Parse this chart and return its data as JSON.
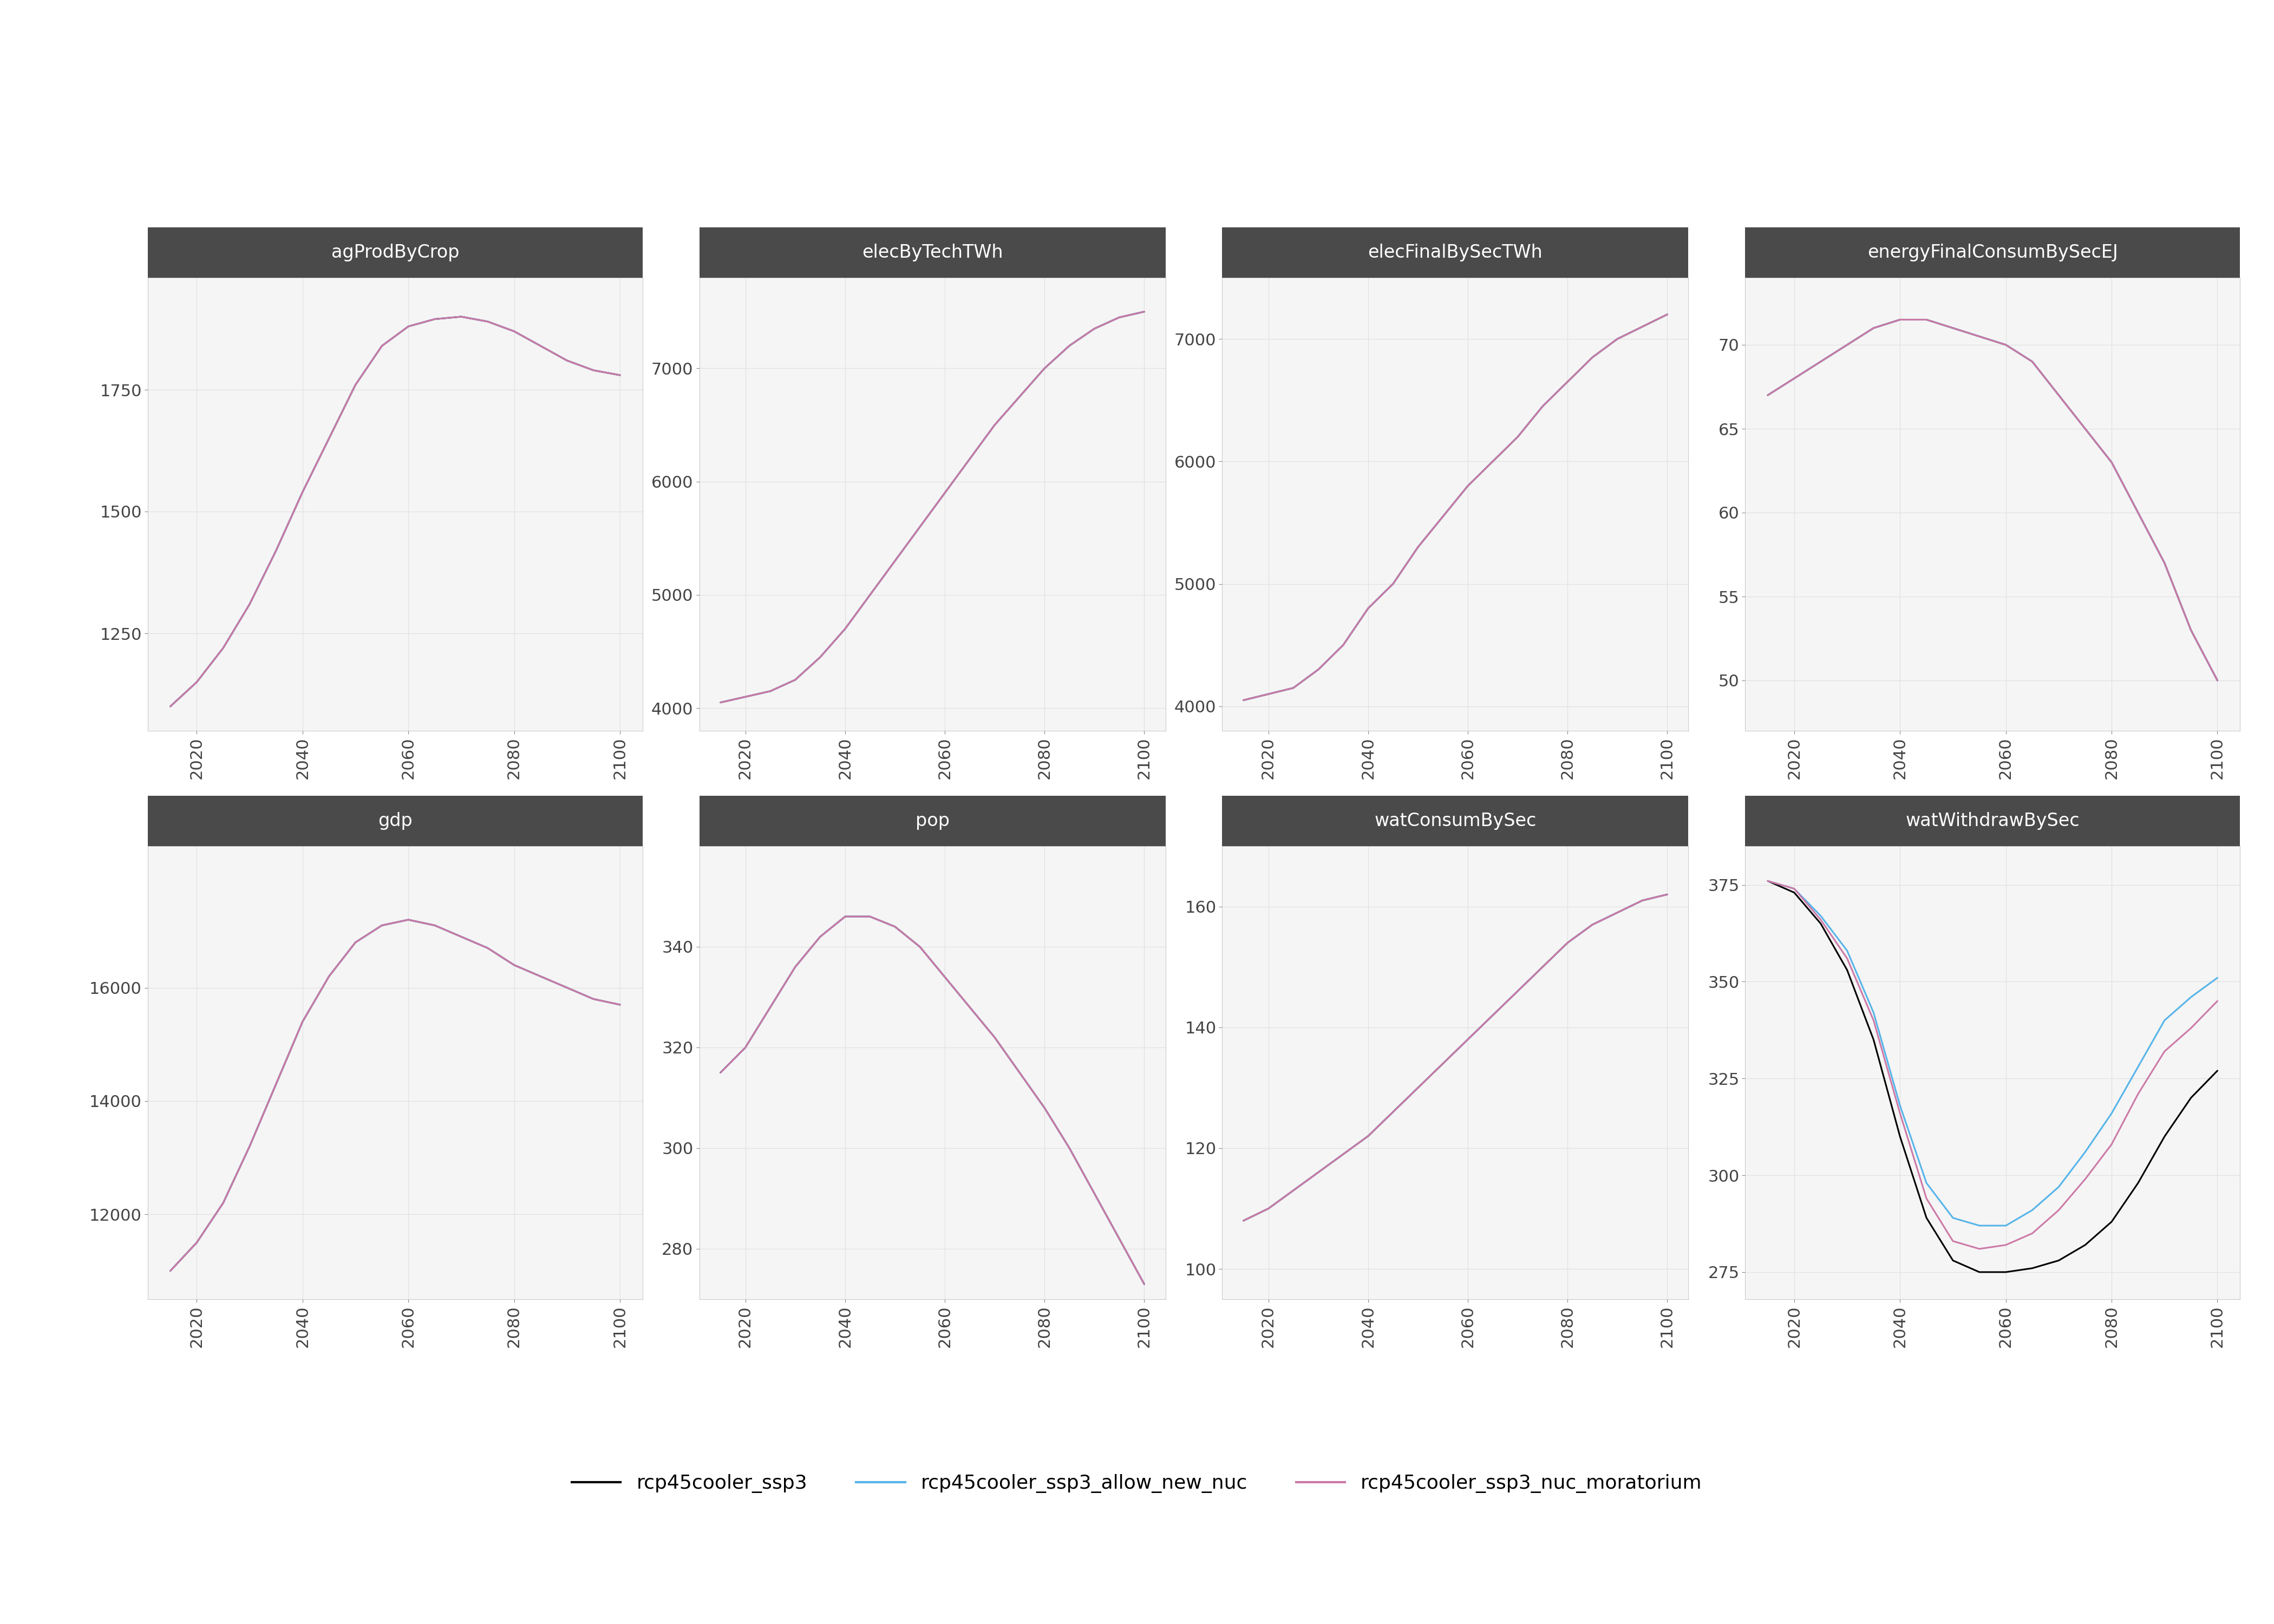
{
  "years": [
    2015,
    2020,
    2025,
    2030,
    2035,
    2040,
    2045,
    2050,
    2055,
    2060,
    2065,
    2070,
    2075,
    2080,
    2085,
    2090,
    2095,
    2100
  ],
  "scenarios": [
    "rcp45cooler_ssp3",
    "rcp45cooler_ssp3_allow_new_nuc",
    "rcp45cooler_ssp3_nuc_moratorium"
  ],
  "colors": [
    "#000000",
    "#56B4E9",
    "#CC79A7"
  ],
  "legend_labels": [
    "rcp45cooler_ssp3",
    "rcp45cooler_ssp3_allow_new_nuc",
    "rcp45cooler_ssp3_nuc_moratorium"
  ],
  "panels": [
    {
      "title": "agProdByCrop",
      "ylim": [
        1050,
        1980
      ],
      "yticks": [
        1250,
        1500,
        1750
      ],
      "data": [
        [
          1100,
          1150,
          1220,
          1310,
          1420,
          1540,
          1650,
          1760,
          1840,
          1880,
          1895,
          1900,
          1890,
          1870,
          1840,
          1810,
          1790,
          1780
        ],
        [
          1100,
          1150,
          1220,
          1310,
          1420,
          1540,
          1650,
          1760,
          1840,
          1880,
          1895,
          1900,
          1890,
          1870,
          1840,
          1810,
          1790,
          1780
        ],
        [
          1100,
          1150,
          1220,
          1310,
          1420,
          1540,
          1650,
          1760,
          1840,
          1880,
          1895,
          1900,
          1890,
          1870,
          1840,
          1810,
          1790,
          1780
        ]
      ]
    },
    {
      "title": "elecByTechTWh",
      "ylim": [
        3800,
        7800
      ],
      "yticks": [
        4000,
        5000,
        6000,
        7000
      ],
      "data": [
        [
          4050,
          4100,
          4150,
          4250,
          4450,
          4700,
          5000,
          5300,
          5600,
          5900,
          6200,
          6500,
          6750,
          7000,
          7200,
          7350,
          7450,
          7500
        ],
        [
          4050,
          4100,
          4150,
          4250,
          4450,
          4700,
          5000,
          5300,
          5600,
          5900,
          6200,
          6500,
          6750,
          7000,
          7200,
          7350,
          7450,
          7500
        ],
        [
          4050,
          4100,
          4150,
          4250,
          4450,
          4700,
          5000,
          5300,
          5600,
          5900,
          6200,
          6500,
          6750,
          7000,
          7200,
          7350,
          7450,
          7500
        ]
      ]
    },
    {
      "title": "elecFinalBySecTWh",
      "ylim": [
        3800,
        7500
      ],
      "yticks": [
        4000,
        5000,
        6000,
        7000
      ],
      "data": [
        [
          4050,
          4100,
          4150,
          4300,
          4500,
          4800,
          5000,
          5300,
          5550,
          5800,
          6000,
          6200,
          6450,
          6650,
          6850,
          7000,
          7100,
          7200
        ],
        [
          4050,
          4100,
          4150,
          4300,
          4500,
          4800,
          5000,
          5300,
          5550,
          5800,
          6000,
          6200,
          6450,
          6650,
          6850,
          7000,
          7100,
          7200
        ],
        [
          4050,
          4100,
          4150,
          4300,
          4500,
          4800,
          5000,
          5300,
          5550,
          5800,
          6000,
          6200,
          6450,
          6650,
          6850,
          7000,
          7100,
          7200
        ]
      ]
    },
    {
      "title": "energyFinalConsumBySecEJ",
      "ylim": [
        47,
        74
      ],
      "yticks": [
        50,
        55,
        60,
        65,
        70
      ],
      "data": [
        [
          67,
          68,
          69,
          70,
          71,
          71.5,
          71.5,
          71,
          70.5,
          70,
          69,
          67,
          65,
          63,
          60,
          57,
          53,
          50
        ],
        [
          67,
          68,
          69,
          70,
          71,
          71.5,
          71.5,
          71,
          70.5,
          70,
          69,
          67,
          65,
          63,
          60,
          57,
          53,
          50
        ],
        [
          67,
          68,
          69,
          70,
          71,
          71.5,
          71.5,
          71,
          70.5,
          70,
          69,
          67,
          65,
          63,
          60,
          57,
          53,
          50
        ]
      ]
    },
    {
      "title": "gdp",
      "ylim": [
        10500,
        18500
      ],
      "yticks": [
        12000,
        14000,
        16000
      ],
      "data": [
        [
          11000,
          11500,
          12200,
          13200,
          14300,
          15400,
          16200,
          16800,
          17100,
          17200,
          17100,
          16900,
          16700,
          16400,
          16200,
          16000,
          15800,
          15700
        ],
        [
          11000,
          11500,
          12200,
          13200,
          14300,
          15400,
          16200,
          16800,
          17100,
          17200,
          17100,
          16900,
          16700,
          16400,
          16200,
          16000,
          15800,
          15700
        ],
        [
          11000,
          11500,
          12200,
          13200,
          14300,
          15400,
          16200,
          16800,
          17100,
          17200,
          17100,
          16900,
          16700,
          16400,
          16200,
          16000,
          15800,
          15700
        ]
      ]
    },
    {
      "title": "pop",
      "ylim": [
        270,
        360
      ],
      "yticks": [
        280,
        300,
        320,
        340
      ],
      "data": [
        [
          315,
          320,
          328,
          336,
          342,
          346,
          346,
          344,
          340,
          334,
          328,
          322,
          315,
          308,
          300,
          291,
          282,
          273
        ],
        [
          315,
          320,
          328,
          336,
          342,
          346,
          346,
          344,
          340,
          334,
          328,
          322,
          315,
          308,
          300,
          291,
          282,
          273
        ],
        [
          315,
          320,
          328,
          336,
          342,
          346,
          346,
          344,
          340,
          334,
          328,
          322,
          315,
          308,
          300,
          291,
          282,
          273
        ]
      ]
    },
    {
      "title": "watConsumBySec",
      "ylim": [
        95,
        170
      ],
      "yticks": [
        100,
        120,
        140,
        160
      ],
      "data": [
        [
          108,
          110,
          113,
          116,
          119,
          122,
          126,
          130,
          134,
          138,
          142,
          146,
          150,
          154,
          157,
          159,
          161,
          162
        ],
        [
          108,
          110,
          113,
          116,
          119,
          122,
          126,
          130,
          134,
          138,
          142,
          146,
          150,
          154,
          157,
          159,
          161,
          162
        ],
        [
          108,
          110,
          113,
          116,
          119,
          122,
          126,
          130,
          134,
          138,
          142,
          146,
          150,
          154,
          157,
          159,
          161,
          162
        ]
      ]
    },
    {
      "title": "watWithdrawBySec",
      "ylim": [
        268,
        385
      ],
      "yticks": [
        275,
        300,
        325,
        350,
        375
      ],
      "data": [
        [
          376,
          373,
          365,
          353,
          335,
          310,
          289,
          278,
          275,
          275,
          276,
          278,
          282,
          288,
          298,
          310,
          320,
          327
        ],
        [
          376,
          374,
          367,
          358,
          342,
          318,
          298,
          289,
          287,
          287,
          291,
          297,
          306,
          316,
          328,
          340,
          346,
          351
        ],
        [
          376,
          374,
          366,
          356,
          340,
          316,
          294,
          283,
          281,
          282,
          285,
          291,
          299,
          308,
          321,
          332,
          338,
          345
        ]
      ]
    }
  ],
  "title_bg_color": "#4a4a4a",
  "title_text_color": "#ffffff",
  "grid_color": "#e0e0e0",
  "plot_bg_color": "#f5f5f5",
  "outer_bg_color": "#ffffff",
  "axis_tick_color": "#444444",
  "line_width": 2.2
}
